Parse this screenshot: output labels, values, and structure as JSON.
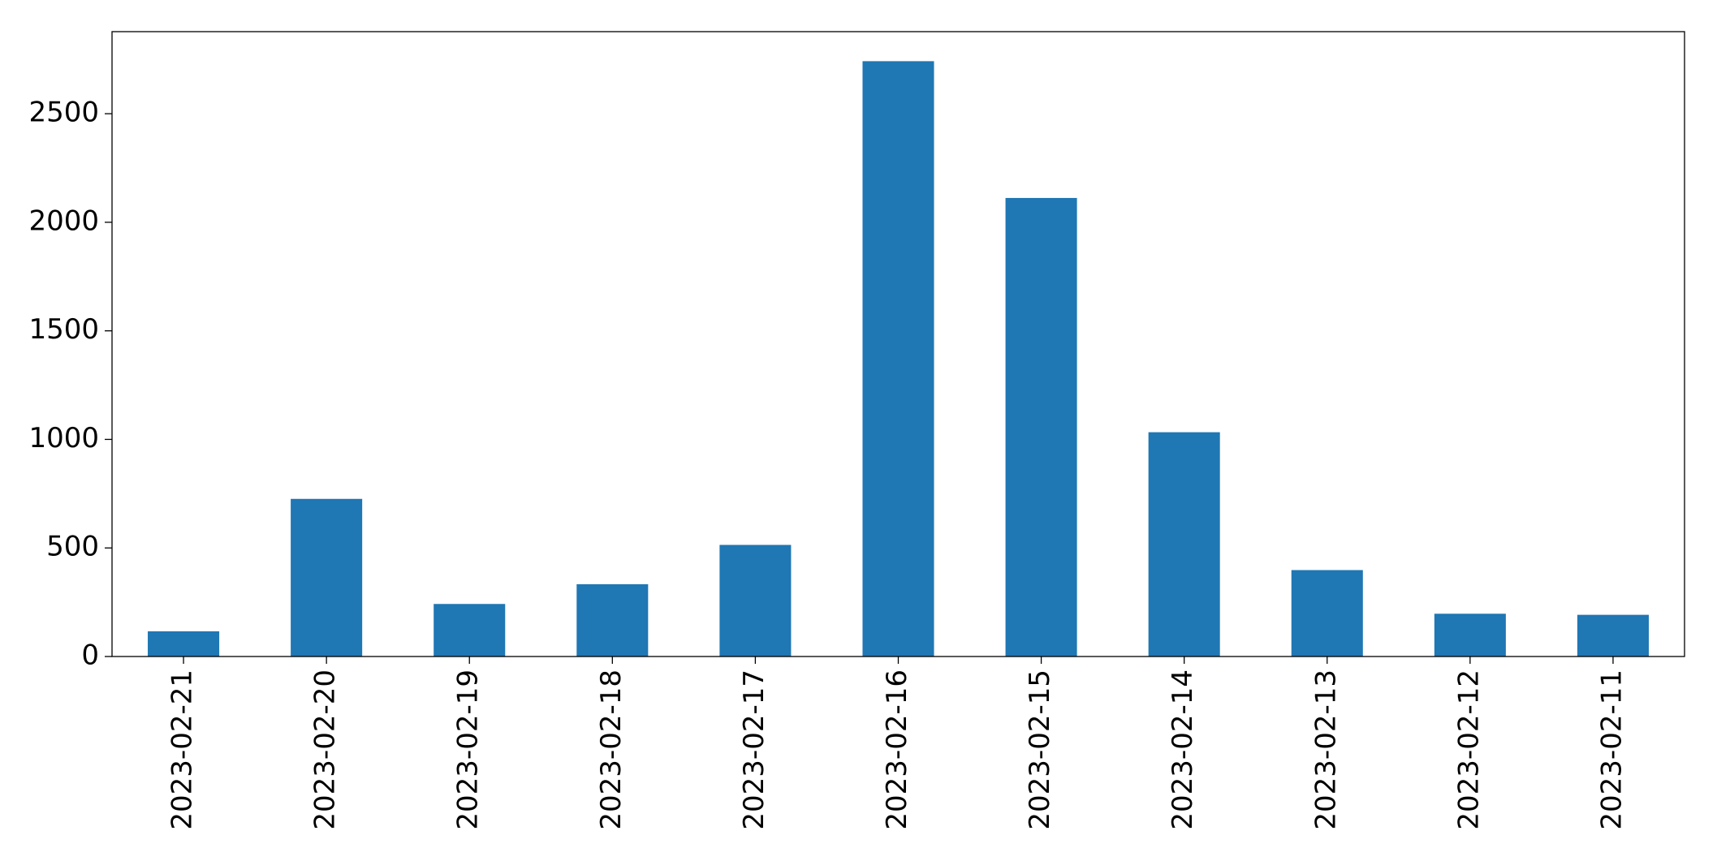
{
  "chart_data": {
    "type": "bar",
    "categories": [
      "2023-02-21",
      "2023-02-20",
      "2023-02-19",
      "2023-02-18",
      "2023-02-17",
      "2023-02-16",
      "2023-02-15",
      "2023-02-14",
      "2023-02-13",
      "2023-02-12",
      "2023-02-11"
    ],
    "values": [
      116,
      726,
      242,
      333,
      514,
      2742,
      2112,
      1033,
      398,
      197,
      192
    ],
    "color": "#1f77b4",
    "ylim": [
      0,
      2878
    ],
    "yticks": [
      0,
      500,
      1000,
      1500,
      2000,
      2500
    ],
    "grid": false
  }
}
